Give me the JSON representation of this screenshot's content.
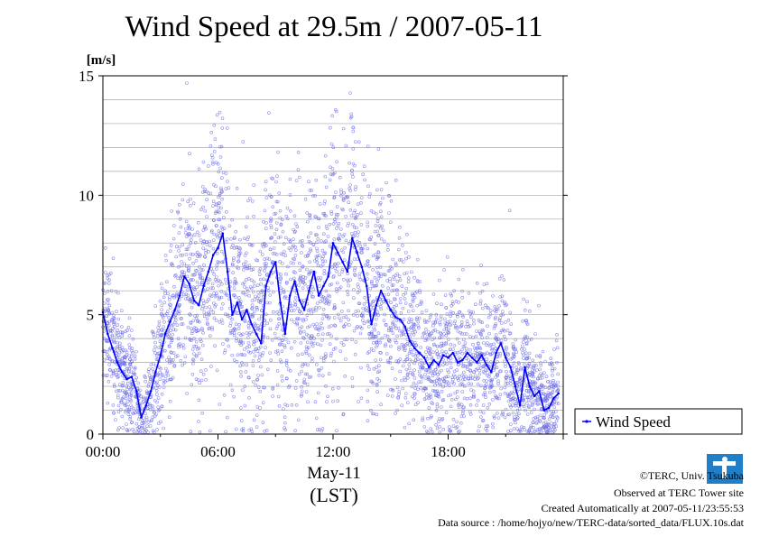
{
  "chart_data": {
    "type": "scatter",
    "title": "Wind Speed at 29.5m / 2007-05-11",
    "ylabel": "[m/s]",
    "xlabel_date": "May-11",
    "xlabel_tz": "(LST)",
    "ylim": [
      0,
      15
    ],
    "xlim": [
      0,
      24
    ],
    "yticks": [
      0,
      5,
      10,
      15
    ],
    "xticks": [
      {
        "value": 0,
        "label": "00:00"
      },
      {
        "value": 6,
        "label": "06:00"
      },
      {
        "value": 12,
        "label": "12:00"
      },
      {
        "value": 18,
        "label": "18:00"
      }
    ],
    "grid": true,
    "legend_position": "right",
    "series": [
      {
        "name": "Wind Speed",
        "kind": "line",
        "color": "#0000ff",
        "x": [
          0,
          0.25,
          0.5,
          0.75,
          1,
          1.25,
          1.5,
          1.75,
          2,
          2.25,
          2.5,
          2.75,
          3,
          3.25,
          3.5,
          3.75,
          4,
          4.25,
          4.5,
          4.75,
          5,
          5.25,
          5.5,
          5.75,
          6,
          6.25,
          6.5,
          6.75,
          7,
          7.25,
          7.5,
          7.75,
          8,
          8.25,
          8.5,
          8.75,
          9,
          9.25,
          9.5,
          9.75,
          10,
          10.25,
          10.5,
          10.75,
          11,
          11.25,
          11.5,
          11.75,
          12,
          12.25,
          12.5,
          12.75,
          13,
          13.25,
          13.5,
          13.75,
          14,
          14.25,
          14.5,
          14.75,
          15,
          15.25,
          15.5,
          15.75,
          16,
          16.25,
          16.5,
          16.75,
          17,
          17.25,
          17.5,
          17.75,
          18,
          18.25,
          18.5,
          18.75,
          19,
          19.25,
          19.5,
          19.75,
          20,
          20.25,
          20.5,
          20.75,
          21,
          21.25,
          21.5,
          21.75,
          22,
          22.25,
          22.5,
          22.75,
          23,
          23.25,
          23.5,
          23.75
        ],
        "values": [
          5.1,
          4.2,
          3.6,
          3.0,
          2.6,
          2.3,
          2.4,
          1.8,
          0.7,
          1.2,
          1.8,
          2.6,
          3.3,
          4.2,
          4.7,
          5.2,
          5.8,
          6.6,
          6.3,
          5.6,
          5.4,
          6.2,
          6.8,
          7.5,
          7.8,
          8.4,
          6.8,
          5.0,
          5.5,
          4.8,
          5.2,
          4.6,
          4.2,
          3.8,
          6.2,
          6.8,
          7.2,
          5.5,
          4.2,
          5.8,
          6.4,
          5.6,
          5.2,
          6.0,
          6.8,
          5.8,
          6.2,
          6.6,
          8.0,
          7.6,
          7.2,
          6.8,
          8.2,
          7.6,
          7.0,
          6.2,
          4.6,
          5.4,
          6.0,
          5.6,
          5.2,
          4.9,
          4.8,
          4.5,
          3.9,
          3.6,
          3.4,
          3.2,
          2.8,
          3.1,
          2.9,
          3.3,
          3.2,
          3.4,
          3.0,
          3.1,
          3.4,
          3.2,
          3.0,
          3.3,
          2.9,
          2.6,
          3.4,
          3.8,
          3.2,
          2.8,
          2.0,
          1.2,
          2.8,
          2.0,
          1.6,
          1.8,
          1.0,
          1.1,
          1.5,
          1.7
        ]
      },
      {
        "name": "",
        "kind": "scatter",
        "color": "#6f6fe8",
        "spread": [
          1.3,
          1.3,
          1.2,
          1.1,
          1.0,
          1.0,
          1.0,
          0.9,
          0.6,
          0.8,
          1.0,
          1.2,
          1.4,
          1.6,
          1.8,
          2.0,
          2.1,
          2.3,
          2.3,
          2.2,
          2.2,
          2.3,
          2.4,
          2.6,
          2.7,
          2.8,
          2.6,
          2.3,
          2.4,
          2.2,
          2.3,
          2.2,
          2.1,
          2.0,
          2.4,
          2.5,
          2.6,
          2.3,
          2.1,
          2.4,
          2.5,
          2.4,
          2.3,
          2.4,
          2.6,
          2.4,
          2.5,
          2.6,
          2.8,
          2.8,
          2.7,
          2.6,
          2.9,
          2.8,
          2.7,
          2.5,
          2.2,
          2.3,
          2.3,
          2.2,
          2.1,
          2.0,
          2.0,
          1.9,
          1.8,
          1.7,
          1.6,
          1.6,
          1.5,
          1.5,
          1.5,
          1.6,
          1.6,
          1.6,
          1.5,
          1.5,
          1.6,
          1.6,
          1.5,
          1.6,
          1.5,
          1.4,
          1.6,
          1.7,
          1.6,
          1.5,
          1.2,
          0.9,
          1.4,
          1.2,
          1.0,
          1.1,
          0.8,
          0.8,
          0.9,
          1.0
        ]
      }
    ]
  },
  "footer": {
    "copyright": "©TERC, Univ. Tsukuba",
    "observed": "Observed at TERC Tower site",
    "created": "Created Automatically at 2007-05-11/23:55:53",
    "source": "Data source : /home/hojyo/new/TERC-data/sorted_data/FLUX.10s.dat"
  },
  "logo": {
    "text": "TERC",
    "color": "#1f7fc9"
  }
}
